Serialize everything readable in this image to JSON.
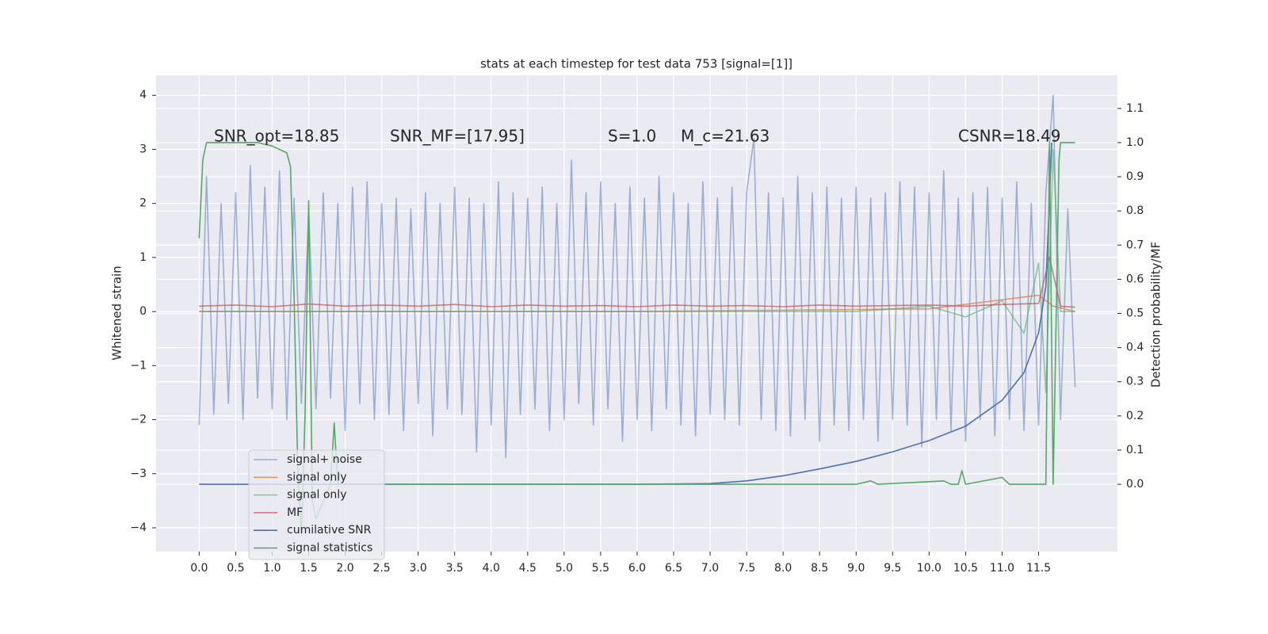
{
  "chart_data": {
    "type": "line",
    "title": "stats at each timestep for test data 753 [signal=[1]]",
    "ylabel": "Whitened strain",
    "y2label": "Detection probability/MF",
    "annotations": [
      "SNR_opt=18.85",
      "SNR_MF=[17.95]",
      "S=1.0",
      "M_c=21.63",
      "CSNR=18.49"
    ],
    "xlim": [
      -0.59,
      12.58
    ],
    "ylim": [
      -4.44,
      4.37
    ],
    "y2lim": [
      -0.197,
      1.197
    ],
    "xticks": [
      {
        "value": 0,
        "label": "0.0"
      },
      0.5,
      {
        "value": 1,
        "label": "1.0"
      },
      1.5,
      {
        "value": 2,
        "label": "2.0"
      },
      2.5,
      {
        "value": 3,
        "label": "3.0"
      },
      3.5,
      {
        "value": 4,
        "label": "4.0"
      },
      4.5,
      {
        "value": 5,
        "label": "5.0"
      },
      5.5,
      {
        "value": 6,
        "label": "6.0"
      },
      6.5,
      {
        "value": 7,
        "label": "7.0"
      },
      7.5,
      {
        "value": 8,
        "label": "8.0"
      },
      8.5,
      {
        "value": 9,
        "label": "9.0"
      },
      9.5,
      {
        "value": 10,
        "label": "10.0"
      },
      10.5,
      {
        "value": 11,
        "label": "11.0"
      },
      11.5
    ],
    "yticks": [
      {
        "value": -4,
        "label": "−4"
      },
      {
        "value": -3,
        "label": "−3"
      },
      {
        "value": -2,
        "label": "−2"
      },
      {
        "value": -1,
        "label": "−1"
      },
      0,
      1,
      2,
      3,
      4
    ],
    "y2ticks": [
      {
        "value": 0,
        "label": "0.0"
      },
      0.1,
      0.2,
      0.3,
      0.4,
      0.5,
      0.6,
      0.7,
      0.8,
      0.9,
      {
        "value": 1,
        "label": "1.0"
      },
      1.1
    ],
    "grid": true,
    "legend": "lower left",
    "series": [
      {
        "name": "signal+ noise",
        "color": "#4c72b0",
        "alpha": 0.5,
        "x": [
          0,
          0.1,
          0.2,
          0.3,
          0.4,
          0.5,
          0.6,
          0.7,
          0.8,
          0.9,
          1,
          1.1,
          1.2,
          1.3,
          1.4,
          1.5,
          1.6,
          1.7,
          1.8,
          1.9,
          2,
          2.1,
          2.2,
          2.3,
          2.4,
          2.5,
          2.6,
          2.7,
          2.8,
          2.9,
          3,
          3.1,
          3.2,
          3.3,
          3.4,
          3.5,
          3.6,
          3.7,
          3.8,
          3.9,
          4,
          4.1,
          4.2,
          4.3,
          4.4,
          4.5,
          4.6,
          4.7,
          4.8,
          4.9,
          5,
          5.1,
          5.2,
          5.3,
          5.4,
          5.5,
          5.6,
          5.7,
          5.8,
          5.9,
          6,
          6.1,
          6.2,
          6.3,
          6.4,
          6.5,
          6.6,
          6.7,
          6.8,
          6.9,
          7,
          7.1,
          7.2,
          7.3,
          7.4,
          7.5,
          7.6,
          7.7,
          7.8,
          7.9,
          8,
          8.1,
          8.2,
          8.3,
          8.4,
          8.5,
          8.6,
          8.7,
          8.8,
          8.9,
          9,
          9.1,
          9.2,
          9.3,
          9.4,
          9.5,
          9.6,
          9.7,
          9.8,
          9.9,
          10,
          10.1,
          10.2,
          10.3,
          10.4,
          10.5,
          10.6,
          10.7,
          10.8,
          10.9,
          11,
          11.1,
          11.2,
          11.3,
          11.4,
          11.5,
          11.6,
          11.7,
          11.8,
          11.9,
          12
        ],
        "values": [
          -2.1,
          2.5,
          -1.9,
          2.0,
          -1.7,
          2.2,
          -2.0,
          2.7,
          -1.6,
          2.3,
          -1.8,
          2.6,
          -2.0,
          2.1,
          -1.7,
          1.9,
          -1.8,
          2.2,
          -1.6,
          2.0,
          -2.2,
          2.3,
          -1.7,
          2.4,
          -2.0,
          2.0,
          -1.9,
          2.1,
          -2.2,
          1.9,
          -1.7,
          2.2,
          -2.3,
          2.0,
          -1.8,
          2.3,
          -1.9,
          2.1,
          -2.6,
          2.0,
          -2.1,
          2.4,
          -2.7,
          2.2,
          -1.9,
          2.1,
          -1.8,
          2.3,
          -2.2,
          2.0,
          -2.0,
          2.8,
          -1.7,
          2.2,
          -2.1,
          2.4,
          -1.8,
          2.0,
          -2.4,
          2.3,
          -2.0,
          2.1,
          -2.2,
          2.5,
          -1.8,
          2.2,
          -2.1,
          2.0,
          -2.3,
          2.4,
          -1.9,
          2.1,
          -2.0,
          2.3,
          -2.1,
          2.2,
          3.2,
          -2.0,
          2.2,
          -2.2,
          2.1,
          -2.3,
          2.5,
          -2.0,
          2.2,
          -2.4,
          2.3,
          -2.1,
          2.1,
          -2.2,
          2.3,
          -2.0,
          2.1,
          -2.4,
          2.2,
          -2.0,
          2.4,
          -2.1,
          2.3,
          -2.5,
          2.2,
          -2.0,
          2.6,
          -2.2,
          2.1,
          -2.4,
          2.2,
          -2.0,
          2.3,
          -2.3,
          2.1,
          -2.0,
          2.4,
          -2.2,
          2.0,
          -2.1,
          2.2,
          4.0,
          -2.0,
          1.9,
          -1.4
        ]
      },
      {
        "name": "signal only",
        "color": "#dd8452",
        "alpha": 0.8,
        "x": [
          0,
          6,
          10,
          11.5,
          11.7,
          12
        ],
        "values": [
          0,
          0,
          0.05,
          0.3,
          0.1,
          0
        ]
      },
      {
        "name": "signal only",
        "color": "#55a868",
        "alpha": 0.6,
        "x": [
          0,
          9,
          10,
          10.5,
          11,
          11.3,
          11.5,
          11.6,
          11.7,
          11.8,
          12
        ],
        "values": [
          0,
          0,
          0.1,
          -0.1,
          0.2,
          -0.4,
          0.9,
          -1.5,
          3.0,
          0,
          0
        ]
      },
      {
        "name": "MF",
        "color": "#c44e52",
        "alpha": 0.7,
        "x": [
          0,
          0.5,
          1,
          1.5,
          2,
          2.5,
          3,
          3.5,
          4,
          4.5,
          5,
          5.5,
          6,
          6.5,
          7,
          7.5,
          8,
          8.5,
          9,
          9.5,
          10,
          10.5,
          11,
          11.5,
          11.65,
          11.8,
          12
        ],
        "values": [
          0.1,
          0.12,
          0.09,
          0.14,
          0.1,
          0.12,
          0.1,
          0.13,
          0.09,
          0.12,
          0.1,
          0.11,
          0.09,
          0.12,
          0.1,
          0.11,
          0.09,
          0.12,
          0.1,
          0.11,
          0.12,
          0.1,
          0.13,
          0.15,
          1.0,
          0.1,
          0.08
        ]
      },
      {
        "name": "cumilative SNR",
        "color": "#4c72b0",
        "alpha": 1,
        "axis": "y2",
        "x": [
          0,
          6,
          7,
          7.5,
          8,
          8.5,
          9,
          9.5,
          10,
          10.5,
          11,
          11.3,
          11.5,
          11.6,
          11.68
        ],
        "values": [
          0,
          0,
          0.002,
          0.01,
          0.025,
          0.045,
          0.067,
          0.095,
          0.128,
          0.17,
          0.246,
          0.327,
          0.443,
          0.58,
          1.0
        ]
      },
      {
        "name": "signal statistics",
        "color": "#55a868",
        "alpha": 1,
        "axis": "y2",
        "x": [
          0,
          0.05,
          0.1,
          0.5,
          0.8,
          1.0,
          1.2,
          1.25,
          1.3,
          1.35,
          1.4,
          1.45,
          1.5,
          1.55,
          1.6,
          1.8,
          1.85,
          1.9,
          2.0,
          9.0,
          9.2,
          9.3,
          10.2,
          10.3,
          10.4,
          10.45,
          10.5,
          11.0,
          11.1,
          11.6,
          11.65,
          11.7,
          11.78,
          11.8,
          12.0
        ],
        "values": [
          0.72,
          0.95,
          1.0,
          1.0,
          1.0,
          0.99,
          0.97,
          0.93,
          0.55,
          0.05,
          -0.15,
          0.2,
          0.83,
          -0.05,
          -0.1,
          0.0,
          0.18,
          0.0,
          0.0,
          0.0,
          0.01,
          0.0,
          0.01,
          0.0,
          0.0,
          0.04,
          0.0,
          0.02,
          0.0,
          0.0,
          1.0,
          0.0,
          0.95,
          1.0,
          1.0
        ]
      }
    ]
  }
}
